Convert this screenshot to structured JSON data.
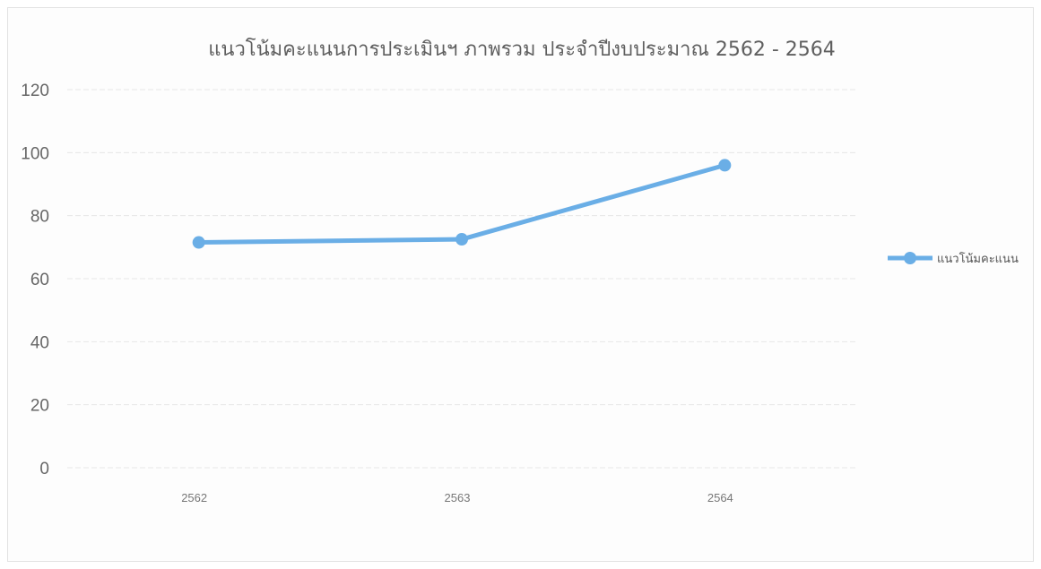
{
  "chart_data": {
    "type": "line",
    "title": "แนวโน้มคะแนนการประเมินฯ ภาพรวม ประจำปีงบประมาณ 2562 - 2564",
    "xlabel": "",
    "ylabel": "",
    "categories": [
      "2562",
      "2563",
      "2564"
    ],
    "series": [
      {
        "name": "แนวโน้มคะแนน",
        "values": [
          71.5,
          72.5,
          96
        ]
      }
    ],
    "ylim": [
      0,
      120
    ],
    "yticks": [
      0,
      20,
      40,
      60,
      80,
      100,
      120
    ],
    "grid": true,
    "legend_position": "right",
    "colors": {
      "series": "#6aaee6",
      "grid": "#e6e6e6",
      "text": "#666666"
    }
  }
}
